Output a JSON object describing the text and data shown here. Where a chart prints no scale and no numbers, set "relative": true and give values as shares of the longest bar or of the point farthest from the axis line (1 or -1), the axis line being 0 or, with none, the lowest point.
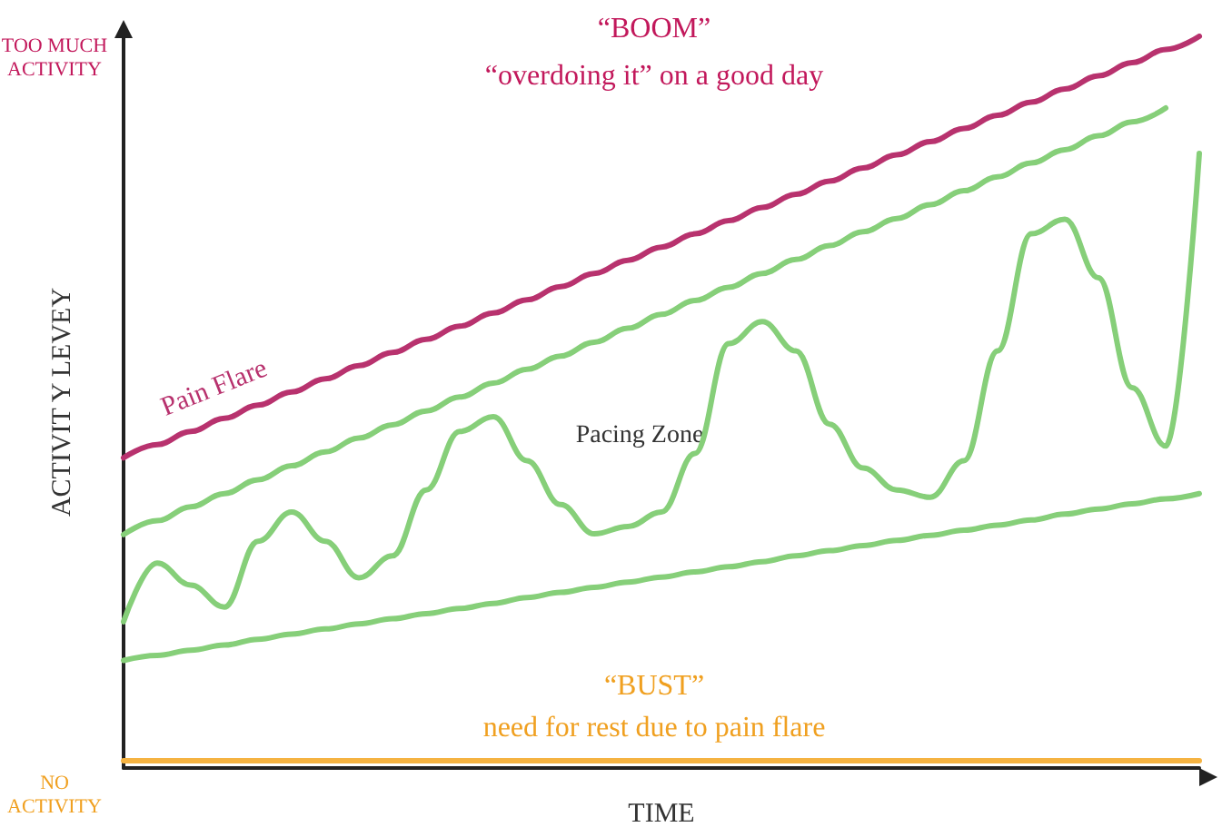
{
  "chart_data": {
    "type": "line",
    "relative": true,
    "xlabel": "TIME",
    "ylabel": "ACTIVIT Y LEVEY",
    "legend": false,
    "grid": false,
    "marker": "none",
    "line_style": "solid",
    "categories": [
      null,
      null,
      null,
      null,
      null,
      null,
      null,
      null,
      null,
      null,
      null,
      null,
      null,
      null,
      null,
      null,
      null,
      null,
      null,
      null,
      null,
      null,
      null,
      null,
      null,
      null,
      null,
      null,
      null,
      null,
      null,
      null,
      null
    ],
    "series": [
      {
        "name": "Pain Flare",
        "color": "#b8326e",
        "values": [
          0.424,
          0.442,
          0.46,
          0.478,
          0.496,
          0.514,
          0.532,
          0.55,
          0.568,
          0.586,
          0.604,
          0.622,
          0.64,
          0.658,
          0.676,
          0.694,
          0.712,
          0.73,
          0.748,
          0.766,
          0.784,
          0.802,
          0.82,
          0.838,
          0.856,
          0.874,
          0.892,
          0.91,
          0.928,
          0.946,
          0.964,
          0.982,
          1
        ]
      },
      {
        "color": "#86cf79",
        "values": [
          0.319,
          0.338,
          0.357,
          0.375,
          0.394,
          0.413,
          0.432,
          0.451,
          0.469,
          0.488,
          0.507,
          0.526,
          0.545,
          0.563,
          0.582,
          0.601,
          0.62,
          0.639,
          0.657,
          0.676,
          0.695,
          0.714,
          0.733,
          0.751,
          0.77,
          0.789,
          0.808,
          0.827,
          0.845,
          0.864,
          0.883,
          0.902,
          null
        ]
      },
      {
        "color": "#86cf79",
        "values": [
          0.147,
          0.154,
          0.161,
          0.168,
          0.176,
          0.183,
          0.19,
          0.197,
          0.204,
          0.211,
          0.218,
          0.225,
          0.233,
          0.24,
          0.247,
          0.254,
          0.261,
          0.268,
          0.275,
          0.282,
          0.29,
          0.297,
          0.304,
          0.311,
          0.318,
          0.325,
          0.332,
          0.339,
          0.347,
          0.354,
          0.361,
          0.368,
          0.375
        ]
      },
      {
        "color": "#86cf79",
        "values": [
          0.2,
          0.28,
          0.25,
          0.22,
          0.31,
          0.35,
          0.31,
          0.26,
          0.29,
          0.38,
          0.46,
          0.48,
          0.42,
          0.36,
          0.32,
          0.33,
          0.35,
          0.43,
          0.58,
          0.61,
          0.57,
          0.47,
          0.41,
          0.38,
          0.37,
          0.42,
          0.57,
          0.73,
          0.75,
          0.67,
          0.52,
          0.44,
          0.84
        ]
      },
      {
        "color": "#f5b342",
        "values": [
          0.01,
          0.01,
          0.01,
          0.01,
          0.01,
          0.01,
          0.01,
          0.01,
          0.01,
          0.01,
          0.01,
          0.01,
          0.01,
          0.01,
          0.01,
          0.01,
          0.01,
          0.01,
          0.01,
          0.01,
          0.01,
          0.01,
          0.01,
          0.01,
          0.01,
          0.01,
          0.01,
          0.01,
          0.01,
          0.01,
          0.01,
          0.01,
          0.01
        ]
      }
    ],
    "annotations": [
      "TOO MUCH\nACTIVITY",
      "NO\nACTIVITY",
      "“BOOM”",
      "“overdoing it” on a good day",
      "Pacing Zone",
      "“BUST”",
      "need for rest due to pain flare"
    ]
  }
}
